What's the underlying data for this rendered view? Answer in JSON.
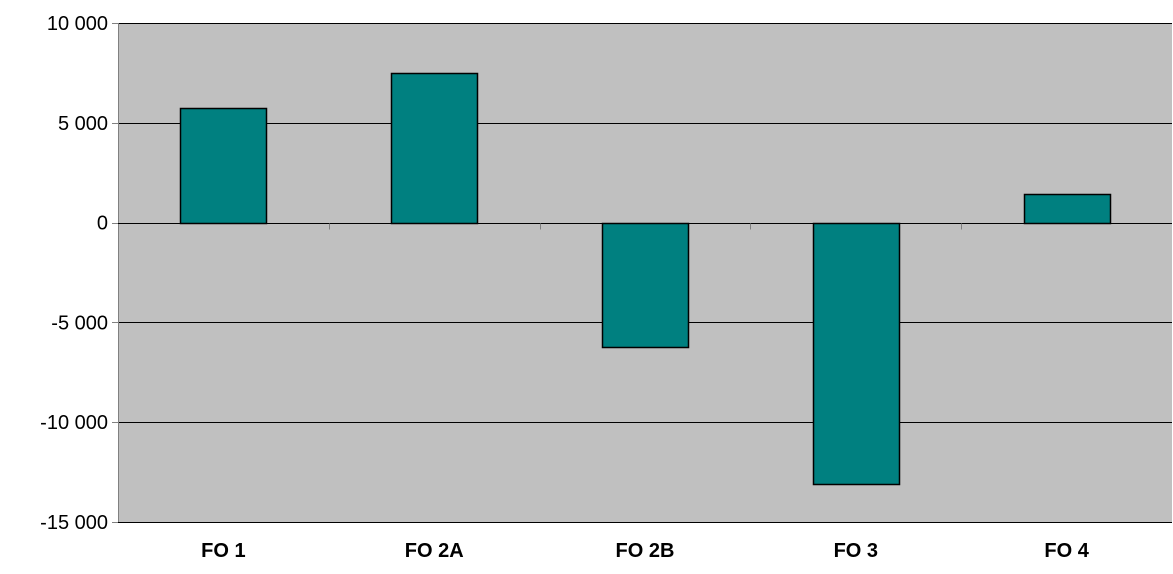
{
  "chart_data": {
    "type": "bar",
    "categories": [
      "FO 1",
      "FO 2A",
      "FO 2B",
      "FO 3",
      "FO 4"
    ],
    "values": [
      5750,
      7500,
      -6200,
      -13100,
      1450
    ],
    "ylim": [
      -15000,
      10000
    ],
    "yticks": [
      10000,
      5000,
      0,
      -5000,
      -10000,
      -15000
    ],
    "ytick_labels": [
      "10 000",
      "5 000",
      "0",
      "-5 000",
      "-10 000",
      "-15 000"
    ],
    "grid": true,
    "legend": "none",
    "colors": {
      "bar": "#008080",
      "plot_background": "#c0c0c0",
      "gridline": "#000000",
      "axis": "#808080"
    }
  }
}
